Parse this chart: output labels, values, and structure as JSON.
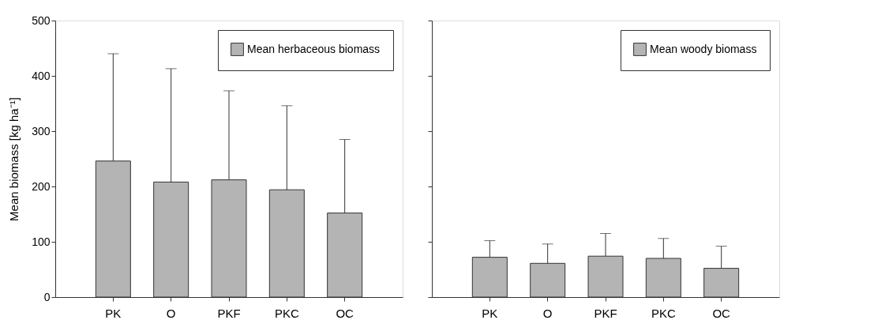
{
  "chart_data": [
    {
      "type": "bar",
      "ylabel": "Mean biomass [kg ha⁻¹]",
      "categories": [
        "PK",
        "O",
        "PKF",
        "PKC",
        "OC"
      ],
      "series": [
        {
          "name": "Mean herbaceous biomass",
          "color": "#b4b4b4",
          "values": [
            246,
            208,
            212,
            194,
            152
          ],
          "errors": [
            [
              246,
              440
            ],
            [
              208,
              413
            ],
            [
              212,
              373
            ],
            [
              194,
              346
            ],
            [
              152,
              285
            ]
          ]
        }
      ],
      "ylim": [
        0,
        500
      ],
      "yticks": [
        0,
        100,
        200,
        300,
        400,
        500
      ],
      "grid": false,
      "legend": "top right"
    },
    {
      "type": "bar",
      "categories": [
        "PK",
        "O",
        "PKF",
        "PKC",
        "OC"
      ],
      "series": [
        {
          "name": "Mean woody biomass",
          "color": "#b4b4b4",
          "values": [
            72,
            61,
            74,
            70,
            52
          ],
          "errors": [
            [
              72,
              102
            ],
            [
              61,
              96
            ],
            [
              74,
              115
            ],
            [
              70,
              106
            ],
            [
              52,
              92
            ]
          ]
        }
      ],
      "ylim": [
        0,
        500
      ],
      "yticks": [
        0,
        100,
        200,
        300,
        400,
        500
      ],
      "grid": false,
      "legend": "top right",
      "tick_labels": "x"
    }
  ]
}
